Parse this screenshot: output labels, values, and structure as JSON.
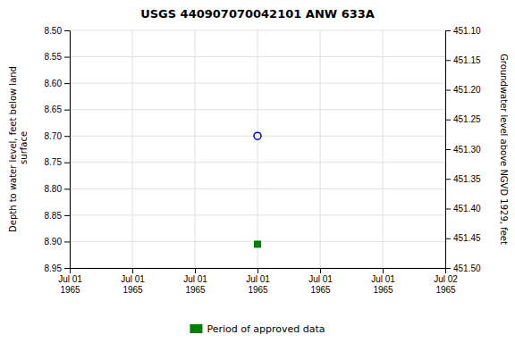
{
  "chart_data": {
    "type": "scatter",
    "title": "USGS 440907070042101 ANW 633A",
    "ylabel": "Depth to water level, feet below land\n surface",
    "y2label": "Groundwater level above NGVD 1929, feet",
    "categories": [
      "Jul 01\n1965",
      "Jul 01\n1965",
      "Jul 01\n1965",
      "Jul 01\n1965",
      "Jul 01\n1965",
      "Jul 01\n1965",
      "Jul 02\n1965"
    ],
    "series": [
      {
        "color": "#0000cc",
        "marker": "circle-open",
        "values": [
          null,
          null,
          null,
          8.7,
          null,
          null,
          null
        ]
      },
      {
        "name": "Period of approved data",
        "color": "#008000",
        "marker": "square",
        "values": [
          null,
          null,
          null,
          8.905,
          null,
          null,
          null
        ]
      }
    ],
    "ylim": [
      8.95,
      8.5
    ],
    "yticks": [
      {
        "value": 8.5,
        "label": "8.50"
      },
      {
        "value": 8.55,
        "label": "8.55"
      },
      {
        "value": 8.6,
        "label": "8.60"
      },
      {
        "value": 8.65,
        "label": "8.65"
      },
      {
        "value": 8.7,
        "label": "8.70"
      },
      {
        "value": 8.75,
        "label": "8.75"
      },
      {
        "value": 8.8,
        "label": "8.80"
      },
      {
        "value": 8.85,
        "label": "8.85"
      },
      {
        "value": 8.9,
        "label": "8.90"
      },
      {
        "value": 8.95,
        "label": "8.95"
      }
    ],
    "y2lim": [
      451.5,
      451.1
    ],
    "y2ticks": [
      {
        "value": 451.1,
        "label": "451.10"
      },
      {
        "value": 451.15,
        "label": "451.15"
      },
      {
        "value": 451.2,
        "label": "451.20"
      },
      {
        "value": 451.25,
        "label": "451.25"
      },
      {
        "value": 451.3,
        "label": "451.30"
      },
      {
        "value": 451.35,
        "label": "451.35"
      },
      {
        "value": 451.4,
        "label": "451.40"
      },
      {
        "value": 451.45,
        "label": "451.45"
      },
      {
        "value": 451.5,
        "label": "451.50"
      }
    ],
    "grid": true,
    "legend": "bottom"
  }
}
